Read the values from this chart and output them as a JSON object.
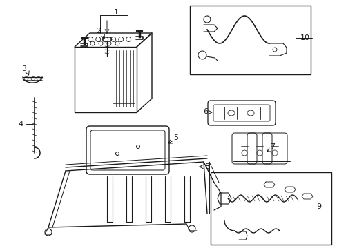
{
  "background": "#ffffff",
  "line_color": "#1a1a1a",
  "label_color": "#000000",
  "fig_width": 4.89,
  "fig_height": 3.6,
  "dpi": 100
}
